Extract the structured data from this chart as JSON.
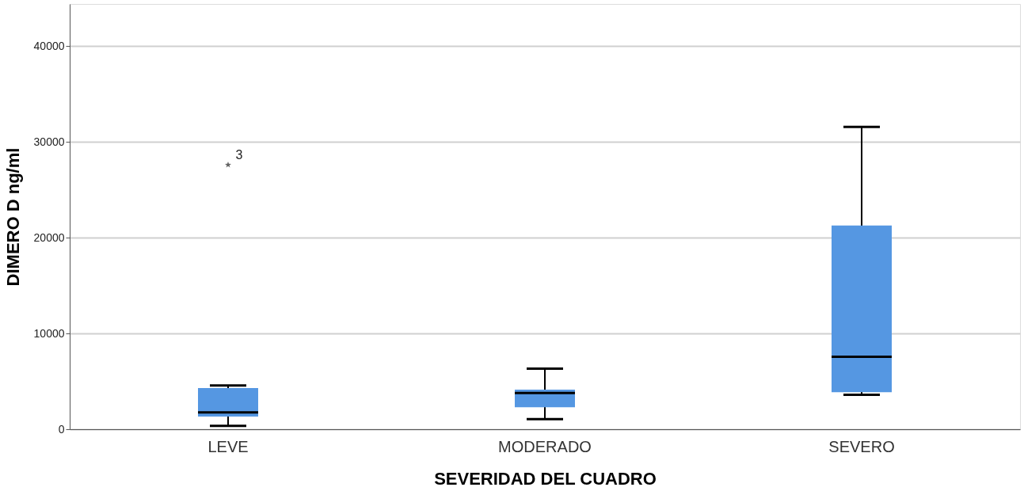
{
  "chart_data": {
    "type": "box",
    "xlabel": "SEVERIDAD DEL CUADRO",
    "ylabel": "DIMERO D ng/ml",
    "categories": [
      "LEVE",
      "MODERADO",
      "SEVERO"
    ],
    "boxes": [
      {
        "low": 350,
        "q1": 1320,
        "median": 1760,
        "q3": 4300,
        "high": 4570,
        "outliers": [
          27600
        ]
      },
      {
        "low": 1050,
        "q1": 2290,
        "median": 3780,
        "q3": 4130,
        "high": 6330
      },
      {
        "low": 3600,
        "q1": 3870,
        "median": 7560,
        "q3": 21270,
        "high": 31560
      }
    ],
    "color": "#5597e2",
    "marker": "star",
    "ylim": [
      0,
      44400
    ],
    "yticks": [
      0,
      10000,
      20000,
      30000,
      40000
    ],
    "grid": "y",
    "annotations": [
      "3"
    ]
  }
}
